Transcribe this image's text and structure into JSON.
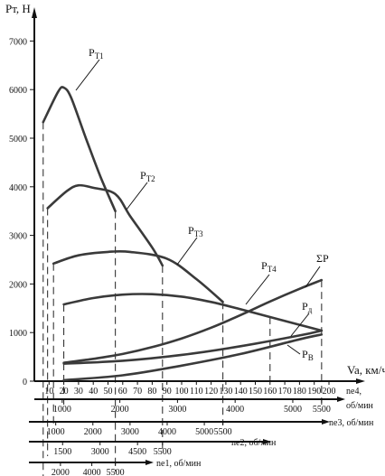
{
  "chart_data": {
    "type": "line",
    "title": "",
    "ylabel": "Pт, Н",
    "xlabel": "Va, км/ч",
    "ylim": [
      0,
      7500
    ],
    "xlim": [
      0,
      200
    ],
    "y_ticks": [
      0,
      1000,
      2000,
      3000,
      4000,
      5000,
      6000,
      7000
    ],
    "x_ticks": [
      10,
      20,
      30,
      40,
      50,
      60,
      70,
      80,
      90,
      100,
      110,
      120,
      130,
      140,
      150,
      160,
      170,
      180,
      190,
      200
    ],
    "series": [
      {
        "name": "Pт1",
        "points": [
          [
            6,
            5330
          ],
          [
            16,
            5950
          ],
          [
            20,
            6040
          ],
          [
            25,
            5830
          ],
          [
            35,
            5000
          ],
          [
            45,
            4200
          ],
          [
            55,
            3500
          ]
        ]
      },
      {
        "name": "Pт2",
        "points": [
          [
            9,
            3560
          ],
          [
            22,
            3910
          ],
          [
            30,
            4030
          ],
          [
            40,
            3980
          ],
          [
            55,
            3850
          ],
          [
            65,
            3400
          ],
          [
            80,
            2750
          ],
          [
            87,
            2380
          ]
        ]
      },
      {
        "name": "Pт3",
        "points": [
          [
            13,
            2420
          ],
          [
            30,
            2590
          ],
          [
            50,
            2660
          ],
          [
            65,
            2660
          ],
          [
            90,
            2520
          ],
          [
            110,
            2100
          ],
          [
            128,
            1630
          ]
        ]
      },
      {
        "name": "Pт4",
        "points": [
          [
            20,
            1580
          ],
          [
            40,
            1710
          ],
          [
            60,
            1780
          ],
          [
            80,
            1790
          ],
          [
            100,
            1740
          ],
          [
            120,
            1630
          ],
          [
            140,
            1480
          ],
          [
            160,
            1320
          ],
          [
            180,
            1160
          ],
          [
            195,
            1040
          ]
        ]
      },
      {
        "name": "ΣP",
        "points": [
          [
            20,
            380
          ],
          [
            40,
            460
          ],
          [
            60,
            560
          ],
          [
            80,
            700
          ],
          [
            100,
            880
          ],
          [
            120,
            1100
          ],
          [
            140,
            1360
          ],
          [
            160,
            1640
          ],
          [
            180,
            1900
          ],
          [
            195,
            2080
          ]
        ]
      },
      {
        "name": "Pд",
        "points": [
          [
            20,
            360
          ],
          [
            60,
            420
          ],
          [
            100,
            540
          ],
          [
            140,
            720
          ],
          [
            180,
            940
          ],
          [
            195,
            1040
          ]
        ]
      },
      {
        "name": "Pв",
        "points": [
          [
            20,
            20
          ],
          [
            60,
            120
          ],
          [
            100,
            320
          ],
          [
            140,
            560
          ],
          [
            180,
            860
          ],
          [
            195,
            960
          ]
        ]
      }
    ],
    "labels": {
      "Pт1": "PТ1",
      "Pт2": "PТ2",
      "Pт3": "PТ3",
      "Pт4": "PТ4",
      "ΣP": "ΣP",
      "Pд": "Pд",
      "Pв": "PВ"
    },
    "rpm_scales": [
      {
        "name": "ne4",
        "label": "ne4,",
        "unit": "об/мин",
        "ticks": [
          1000,
          2000,
          3000,
          4000,
          5000,
          5500
        ]
      },
      {
        "name": "ne3",
        "label": "ne3, об/мин",
        "ticks": [
          1000,
          2000,
          3000,
          4000,
          5000,
          5500
        ]
      },
      {
        "name": "ne2",
        "label": "ne2, об/мин",
        "ticks": [
          1500,
          3000,
          4500,
          5500
        ]
      },
      {
        "name": "ne1",
        "label": "ne1, об/мин",
        "ticks": [
          2000,
          4000,
          5500
        ]
      }
    ]
  }
}
